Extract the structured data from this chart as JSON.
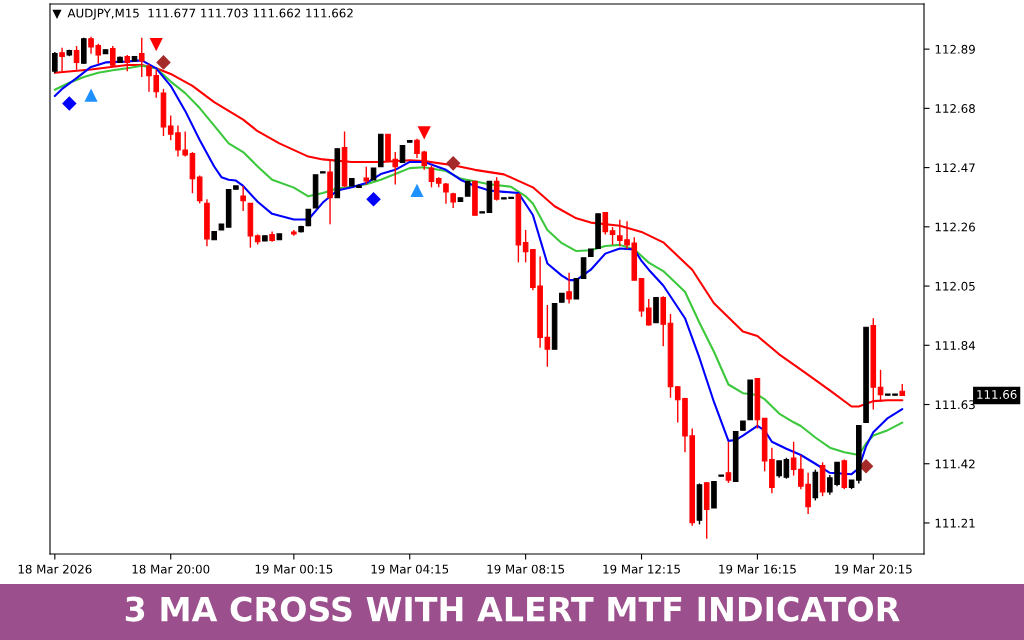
{
  "chart_data": {
    "type": "candlestick",
    "title": "3 MA CROSS WITH ALERT MTF INDICATOR",
    "subtitle": "AUDJPY,M15  111.677 111.703 111.662 111.662",
    "x": [
      "2026-03-18T16:00",
      "2026-03-18T16:15",
      "2026-03-18T16:30",
      "2026-03-18T16:45",
      "2026-03-18T17:00",
      "2026-03-18T17:15",
      "2026-03-18T17:30",
      "2026-03-18T17:45",
      "2026-03-18T18:00",
      "2026-03-18T18:15",
      "2026-03-18T18:30",
      "2026-03-18T18:45",
      "2026-03-18T19:00",
      "2026-03-18T19:15",
      "2026-03-18T19:30",
      "2026-03-18T19:45",
      "2026-03-18T20:00",
      "2026-03-18T20:15",
      "2026-03-18T20:30",
      "2026-03-18T20:45",
      "2026-03-18T21:00",
      "2026-03-18T21:15",
      "2026-03-18T21:30",
      "2026-03-18T21:45",
      "2026-03-18T22:00",
      "2026-03-18T22:15",
      "2026-03-18T22:30",
      "2026-03-18T22:45",
      "2026-03-18T23:00",
      "2026-03-18T23:15",
      "2026-03-18T23:30",
      "2026-03-18T23:45",
      "2026-03-19T00:15",
      "2026-03-19T00:30",
      "2026-03-19T00:45",
      "2026-03-19T01:00",
      "2026-03-19T01:15",
      "2026-03-19T01:30",
      "2026-03-19T01:45",
      "2026-03-19T02:00",
      "2026-03-19T02:15",
      "2026-03-19T02:30",
      "2026-03-19T02:45",
      "2026-03-19T03:00",
      "2026-03-19T03:15",
      "2026-03-19T03:30",
      "2026-03-19T03:45",
      "2026-03-19T04:00",
      "2026-03-19T04:15",
      "2026-03-19T04:30",
      "2026-03-19T04:45",
      "2026-03-19T05:00",
      "2026-03-19T05:15",
      "2026-03-19T05:30",
      "2026-03-19T05:45",
      "2026-03-19T06:00",
      "2026-03-19T06:15",
      "2026-03-19T06:30",
      "2026-03-19T06:45",
      "2026-03-19T07:00",
      "2026-03-19T07:15",
      "2026-03-19T07:30",
      "2026-03-19T07:45",
      "2026-03-19T08:00",
      "2026-03-19T08:15",
      "2026-03-19T08:30",
      "2026-03-19T08:45",
      "2026-03-19T09:00",
      "2026-03-19T09:15",
      "2026-03-19T09:30",
      "2026-03-19T09:45",
      "2026-03-19T10:00",
      "2026-03-19T10:15",
      "2026-03-19T10:30",
      "2026-03-19T10:45",
      "2026-03-19T11:00",
      "2026-03-19T11:15",
      "2026-03-19T11:30",
      "2026-03-19T11:45",
      "2026-03-19T12:00",
      "2026-03-19T12:15",
      "2026-03-19T12:30",
      "2026-03-19T12:45",
      "2026-03-19T13:00",
      "2026-03-19T13:15",
      "2026-03-19T13:30",
      "2026-03-19T13:45",
      "2026-03-19T14:00",
      "2026-03-19T14:15",
      "2026-03-19T14:30",
      "2026-03-19T14:45",
      "2026-03-19T15:00",
      "2026-03-19T15:15",
      "2026-03-19T15:30",
      "2026-03-19T15:45",
      "2026-03-19T16:00",
      "2026-03-19T16:15",
      "2026-03-19T16:30",
      "2026-03-19T16:45",
      "2026-03-19T17:00",
      "2026-03-19T17:15",
      "2026-03-19T17:30",
      "2026-03-19T17:45",
      "2026-03-19T18:00",
      "2026-03-19T18:15",
      "2026-03-19T18:30",
      "2026-03-19T18:45",
      "2026-03-19T19:00",
      "2026-03-19T19:15",
      "2026-03-19T19:30",
      "2026-03-19T19:45",
      "2026-03-19T20:00",
      "2026-03-19T20:15",
      "2026-03-19T20:30",
      "2026-03-19T20:45",
      "2026-03-19T21:00",
      "2026-03-19T21:15"
    ],
    "ohlc": [
      [
        112.812,
        112.88,
        112.805,
        112.874
      ],
      [
        112.877,
        112.895,
        112.812,
        112.864
      ],
      [
        112.869,
        112.888,
        112.865,
        112.885
      ],
      [
        112.885,
        112.901,
        112.817,
        112.843
      ],
      [
        112.84,
        112.93,
        112.838,
        112.927
      ],
      [
        112.927,
        112.934,
        112.874,
        112.898
      ],
      [
        112.903,
        112.909,
        112.838,
        112.869
      ],
      [
        112.874,
        112.888,
        112.874,
        112.888
      ],
      [
        112.892,
        112.901,
        112.828,
        112.833
      ],
      [
        112.843,
        112.864,
        112.843,
        112.861
      ],
      [
        112.864,
        112.869,
        112.812,
        112.843
      ],
      [
        112.848,
        112.866,
        112.846,
        112.864
      ],
      [
        112.874,
        112.93,
        112.791,
        112.848
      ],
      [
        112.828,
        112.838,
        112.739,
        112.796
      ],
      [
        112.796,
        112.817,
        112.718,
        112.739
      ],
      [
        112.734,
        112.749,
        112.582,
        112.614
      ],
      [
        112.617,
        112.655,
        112.567,
        112.588
      ],
      [
        112.593,
        112.619,
        112.509,
        112.533
      ],
      [
        112.532,
        112.598,
        112.509,
        112.515
      ],
      [
        112.52,
        112.525,
        112.379,
        112.431
      ],
      [
        112.436,
        112.442,
        112.343,
        112.353
      ],
      [
        112.343,
        112.358,
        112.191,
        112.217
      ],
      [
        112.214,
        112.243,
        112.214,
        112.243
      ],
      [
        112.249,
        112.27,
        112.249,
        112.27
      ],
      [
        112.259,
        112.392,
        112.259,
        112.392
      ],
      [
        112.393,
        112.405,
        112.393,
        112.405
      ],
      [
        112.369,
        112.405,
        112.316,
        112.353
      ],
      [
        112.343,
        112.343,
        112.186,
        112.228
      ],
      [
        112.228,
        112.233,
        112.197,
        112.207
      ],
      [
        112.21,
        112.228,
        112.21,
        112.228
      ],
      [
        112.233,
        112.243,
        112.207,
        112.212
      ],
      [
        112.214,
        112.235,
        112.214,
        112.235
      ],
      [
        112.241,
        112.249,
        112.228,
        112.235
      ],
      [
        112.243,
        112.264,
        112.24,
        112.261
      ],
      [
        112.264,
        112.322,
        112.262,
        112.322
      ],
      [
        112.327,
        112.444,
        112.327,
        112.444
      ],
      [
        112.451,
        112.455,
        112.451,
        112.455
      ],
      [
        112.454,
        112.499,
        112.269,
        112.363
      ],
      [
        112.363,
        112.537,
        112.363,
        112.537
      ],
      [
        112.541,
        112.598,
        112.4,
        112.405
      ],
      [
        112.405,
        112.431,
        112.405,
        112.431
      ],
      [
        112.4,
        112.41,
        112.398,
        112.405
      ],
      [
        112.433,
        112.473,
        112.41,
        112.423
      ],
      [
        112.426,
        112.468,
        112.426,
        112.468
      ],
      [
        112.473,
        112.588,
        112.473,
        112.588
      ],
      [
        112.588,
        112.588,
        112.494,
        112.494
      ],
      [
        112.499,
        112.525,
        112.41,
        112.473
      ],
      [
        112.488,
        112.548,
        112.488,
        112.548
      ],
      [
        112.56,
        112.566,
        112.56,
        112.566
      ],
      [
        112.567,
        112.572,
        112.504,
        112.52
      ],
      [
        112.525,
        112.53,
        112.462,
        112.478
      ],
      [
        112.468,
        112.478,
        112.4,
        112.421
      ],
      [
        112.431,
        112.436,
        112.4,
        112.415
      ],
      [
        112.412,
        112.415,
        112.342,
        112.384
      ],
      [
        112.377,
        112.381,
        112.327,
        112.348
      ],
      [
        112.35,
        112.363,
        112.35,
        112.363
      ],
      [
        112.369,
        112.421,
        112.369,
        112.421
      ],
      [
        112.421,
        112.421,
        112.301,
        112.301
      ],
      [
        112.309,
        112.313,
        112.309,
        112.313
      ],
      [
        112.311,
        112.421,
        112.311,
        112.421
      ],
      [
        112.421,
        112.436,
        112.353,
        112.358
      ],
      [
        112.359,
        112.363,
        112.359,
        112.363
      ],
      [
        112.361,
        112.365,
        112.361,
        112.365
      ],
      [
        112.374,
        112.379,
        112.134,
        112.196
      ],
      [
        112.204,
        112.249,
        112.134,
        112.172
      ],
      [
        112.179,
        112.181,
        112.035,
        112.045
      ],
      [
        112.05,
        112.155,
        111.831,
        111.868
      ],
      [
        111.868,
        111.983,
        111.764,
        111.826
      ],
      [
        111.826,
        111.988,
        111.826,
        111.988
      ],
      [
        111.993,
        112.024,
        111.993,
        112.024
      ],
      [
        112.03,
        112.097,
        111.988,
        112.004
      ],
      [
        112.004,
        112.077,
        112.004,
        112.077
      ],
      [
        112.077,
        112.15,
        112.077,
        112.15
      ],
      [
        112.155,
        112.181,
        112.155,
        112.181
      ],
      [
        112.183,
        112.306,
        112.183,
        112.306
      ],
      [
        112.311,
        112.311,
        112.233,
        112.243
      ],
      [
        112.246,
        112.259,
        112.196,
        112.233
      ],
      [
        112.228,
        112.285,
        112.191,
        112.212
      ],
      [
        112.214,
        112.28,
        112.181,
        112.196
      ],
      [
        112.202,
        112.223,
        112.071,
        112.071
      ],
      [
        112.077,
        112.077,
        111.941,
        111.962
      ],
      [
        111.972,
        112.004,
        111.91,
        111.912
      ],
      [
        111.92,
        112.009,
        111.92,
        112.009
      ],
      [
        112.009,
        112.014,
        111.837,
        111.915
      ],
      [
        111.918,
        111.951,
        111.654,
        111.693
      ],
      [
        111.693,
        111.696,
        111.566,
        111.647
      ],
      [
        111.651,
        111.654,
        111.461,
        111.519
      ],
      [
        111.519,
        111.545,
        111.2,
        111.211
      ],
      [
        111.22,
        111.35,
        111.205,
        111.345
      ],
      [
        111.352,
        111.355,
        111.154,
        111.258
      ],
      [
        111.263,
        111.357,
        111.263,
        111.357
      ],
      [
        111.376,
        111.38,
        111.376,
        111.38
      ],
      [
        111.388,
        111.498,
        111.352,
        111.362
      ],
      [
        111.357,
        111.534,
        111.357,
        111.534
      ],
      [
        111.539,
        111.571,
        111.539,
        111.571
      ],
      [
        111.576,
        111.717,
        111.576,
        111.717
      ],
      [
        111.722,
        111.722,
        111.545,
        111.576
      ],
      [
        111.581,
        111.581,
        111.393,
        111.43
      ],
      [
        111.435,
        111.477,
        111.315,
        111.336
      ],
      [
        111.378,
        111.43,
        111.37,
        111.43
      ],
      [
        111.372,
        111.441,
        111.367,
        111.435
      ],
      [
        111.44,
        111.498,
        111.378,
        111.4
      ],
      [
        111.4,
        111.451,
        111.33,
        111.34
      ],
      [
        111.347,
        111.388,
        111.242,
        111.268
      ],
      [
        111.3,
        111.399,
        111.29,
        111.39
      ],
      [
        111.414,
        111.425,
        111.305,
        111.32
      ],
      [
        111.32,
        111.38,
        111.31,
        111.37
      ],
      [
        111.347,
        111.425,
        111.34,
        111.425
      ],
      [
        111.43,
        111.435,
        111.33,
        111.336
      ],
      [
        111.336,
        111.362,
        111.33,
        111.362
      ],
      [
        111.362,
        111.555,
        111.35,
        111.555
      ],
      [
        111.566,
        111.904,
        111.566,
        111.904
      ],
      [
        111.91,
        111.936,
        111.612,
        111.691
      ],
      [
        111.691,
        111.753,
        111.639,
        111.665
      ],
      [
        111.663,
        111.667,
        111.663,
        111.667
      ],
      [
        111.663,
        111.667,
        111.663,
        111.667
      ],
      [
        111.677,
        111.703,
        111.662,
        111.662
      ]
    ],
    "colors": [
      "#000000",
      "#ff0000",
      "#000000",
      "#ff0000",
      "#000000",
      "#ff0000",
      "#ff0000",
      "#000000",
      "#ff0000",
      "#000000",
      "#ff0000",
      "#000000",
      "#ff0000",
      "#ff0000",
      "#ff0000",
      "#ff0000",
      "#ff0000",
      "#ff0000",
      "#ff0000",
      "#ff0000",
      "#ff0000",
      "#ff0000",
      "#000000",
      "#000000",
      "#000000",
      "#000000",
      "#ff0000",
      "#ff0000",
      "#ff0000",
      "#000000",
      "#ff0000",
      "#000000",
      "#ff0000",
      "#000000",
      "#000000",
      "#000000",
      "#000000",
      "#ff0000",
      "#000000",
      "#ff0000",
      "#000000",
      "#000000",
      "#ff0000",
      "#000000",
      "#000000",
      "#ff0000",
      "#ff0000",
      "#000000",
      "#000000",
      "#ff0000",
      "#ff0000",
      "#ff0000",
      "#ff0000",
      "#ff0000",
      "#ff0000",
      "#000000",
      "#000000",
      "#ff0000",
      "#000000",
      "#000000",
      "#ff0000",
      "#000000",
      "#000000",
      "#ff0000",
      "#ff0000",
      "#ff0000",
      "#ff0000",
      "#ff0000",
      "#000000",
      "#000000",
      "#ff0000",
      "#000000",
      "#000000",
      "#000000",
      "#000000",
      "#ff0000",
      "#ff0000",
      "#ff0000",
      "#ff0000",
      "#ff0000",
      "#ff0000",
      "#ff0000",
      "#000000",
      "#ff0000",
      "#ff0000",
      "#ff0000",
      "#ff0000",
      "#ff0000",
      "#000000",
      "#ff0000",
      "#000000",
      "#000000",
      "#ff0000",
      "#000000",
      "#000000",
      "#000000",
      "#ff0000",
      "#ff0000",
      "#ff0000",
      "#000000",
      "#000000",
      "#ff0000",
      "#ff0000",
      "#ff0000",
      "#000000",
      "#ff0000",
      "#000000",
      "#000000",
      "#ff0000",
      "#000000",
      "#000000",
      "#000000",
      "#ff0000",
      "#ff0000",
      "#000000",
      "#000000",
      "#ff0000"
    ],
    "series": [
      {
        "type": "line",
        "color": "#ff0000",
        "x": [
          "2026-03-18T16:00",
          "2026-03-18T17:15",
          "2026-03-18T18:30",
          "2026-03-18T19:00",
          "2026-03-18T19:30",
          "2026-03-18T20:00",
          "2026-03-18T20:45",
          "2026-03-18T21:30",
          "2026-03-18T22:00",
          "2026-03-18T22:30",
          "2026-03-18T23:00",
          "2026-03-18T23:45",
          "2026-03-19T00:45",
          "2026-03-19T01:15",
          "2026-03-19T02:15",
          "2026-03-19T03:15",
          "2026-03-19T04:15",
          "2026-03-19T04:45",
          "2026-03-19T05:45",
          "2026-03-19T06:30",
          "2026-03-19T07:30",
          "2026-03-19T08:30",
          "2026-03-19T09:15",
          "2026-03-19T10:00",
          "2026-03-19T10:30",
          "2026-03-19T11:30",
          "2026-03-19T12:15",
          "2026-03-19T13:00",
          "2026-03-19T14:00",
          "2026-03-19T14:45",
          "2026-03-19T15:45",
          "2026-03-19T16:15",
          "2026-03-19T17:00",
          "2026-03-19T17:45",
          "2026-03-19T18:45",
          "2026-03-19T19:30",
          "2026-03-19T19:45",
          "2026-03-19T20:15",
          "2026-03-19T20:45",
          "2026-03-19T21:15"
        ],
        "values": [
          112.806,
          112.818,
          112.834,
          112.834,
          112.822,
          112.802,
          112.76,
          112.702,
          112.671,
          112.64,
          112.599,
          112.556,
          112.509,
          112.499,
          112.49,
          112.49,
          112.496,
          112.493,
          112.478,
          112.462,
          112.446,
          112.4,
          112.333,
          112.29,
          112.275,
          112.264,
          112.242,
          112.205,
          112.108,
          111.989,
          111.889,
          111.873,
          111.808,
          111.754,
          111.68,
          111.623,
          111.623,
          111.642,
          111.645,
          111.645
        ]
      },
      {
        "type": "line",
        "color": "#3cc83c",
        "x": [
          "2026-03-18T16:00",
          "2026-03-18T16:30",
          "2026-03-18T17:00",
          "2026-03-18T17:30",
          "2026-03-18T18:00",
          "2026-03-18T18:30",
          "2026-03-18T19:00",
          "2026-03-18T19:30",
          "2026-03-18T20:00",
          "2026-03-18T20:30",
          "2026-03-18T21:00",
          "2026-03-18T21:30",
          "2026-03-18T22:00",
          "2026-03-18T22:30",
          "2026-03-18T23:00",
          "2026-03-18T23:30",
          "2026-03-19T00:15",
          "2026-03-19T00:45",
          "2026-03-19T01:15",
          "2026-03-19T01:45",
          "2026-03-19T02:15",
          "2026-03-19T02:45",
          "2026-03-19T03:15",
          "2026-03-19T03:45",
          "2026-03-19T04:15",
          "2026-03-19T04:45",
          "2026-03-19T05:30",
          "2026-03-19T06:00",
          "2026-03-19T07:00",
          "2026-03-19T07:45",
          "2026-03-19T08:15",
          "2026-03-19T08:30",
          "2026-03-19T09:00",
          "2026-03-19T09:30",
          "2026-03-19T10:00",
          "2026-03-19T10:30",
          "2026-03-19T11:00",
          "2026-03-19T11:30",
          "2026-03-19T12:00",
          "2026-03-19T12:30",
          "2026-03-19T13:00",
          "2026-03-19T13:45",
          "2026-03-19T14:15",
          "2026-03-19T14:45",
          "2026-03-19T15:15",
          "2026-03-19T15:45",
          "2026-03-19T16:15",
          "2026-03-19T16:30",
          "2026-03-19T17:00",
          "2026-03-19T17:30",
          "2026-03-19T17:45",
          "2026-03-19T18:15",
          "2026-03-19T18:45",
          "2026-03-19T19:15",
          "2026-03-19T19:45",
          "2026-03-19T20:00",
          "2026-03-19T20:15",
          "2026-03-19T20:45",
          "2026-03-19T21:15"
        ],
        "values": [
          112.746,
          112.771,
          112.791,
          112.806,
          112.815,
          112.822,
          112.831,
          112.822,
          112.775,
          112.734,
          112.681,
          112.619,
          112.556,
          112.525,
          112.474,
          112.427,
          112.399,
          112.368,
          112.38,
          112.396,
          112.402,
          112.411,
          112.427,
          112.447,
          112.468,
          112.471,
          112.458,
          112.431,
          112.411,
          112.402,
          112.368,
          112.343,
          112.249,
          112.202,
          112.174,
          112.177,
          112.192,
          112.196,
          112.18,
          112.133,
          112.103,
          112.03,
          111.92,
          111.817,
          111.701,
          111.67,
          111.664,
          111.649,
          111.598,
          111.567,
          111.554,
          111.513,
          111.477,
          111.461,
          111.451,
          111.492,
          111.52,
          111.539,
          111.566
        ]
      },
      {
        "type": "line",
        "color": "#0000ff",
        "x": [
          "2026-03-18T16:00",
          "2026-03-18T16:15",
          "2026-03-18T16:45",
          "2026-03-18T17:15",
          "2026-03-18T17:45",
          "2026-03-18T18:30",
          "2026-03-18T19:00",
          "2026-03-18T19:30",
          "2026-03-18T20:00",
          "2026-03-18T20:30",
          "2026-03-18T21:00",
          "2026-03-18T21:30",
          "2026-03-18T21:45",
          "2026-03-18T22:00",
          "2026-03-18T22:15",
          "2026-03-18T22:30",
          "2026-03-18T23:00",
          "2026-03-18T23:30",
          "2026-03-19T00:15",
          "2026-03-19T00:45",
          "2026-03-19T01:15",
          "2026-03-19T01:45",
          "2026-03-19T02:15",
          "2026-03-19T02:45",
          "2026-03-19T03:15",
          "2026-03-19T03:45",
          "2026-03-19T04:15",
          "2026-03-19T04:45",
          "2026-03-19T05:30",
          "2026-03-19T06:00",
          "2026-03-19T06:30",
          "2026-03-19T07:00",
          "2026-03-19T07:30",
          "2026-03-19T08:00",
          "2026-03-19T08:30",
          "2026-03-19T09:00",
          "2026-03-19T09:30",
          "2026-03-19T09:45",
          "2026-03-19T10:00",
          "2026-03-19T10:30",
          "2026-03-19T11:00",
          "2026-03-19T11:30",
          "2026-03-19T12:00",
          "2026-03-19T12:15",
          "2026-03-19T12:30",
          "2026-03-19T13:00",
          "2026-03-19T13:45",
          "2026-03-19T14:15",
          "2026-03-19T14:45",
          "2026-03-19T15:15",
          "2026-03-19T15:30",
          "2026-03-19T15:45",
          "2026-03-19T16:15",
          "2026-03-19T16:30",
          "2026-03-19T16:45",
          "2026-03-19T17:15",
          "2026-03-19T17:45",
          "2026-03-19T18:15",
          "2026-03-19T18:45",
          "2026-03-19T19:30",
          "2026-03-19T19:45",
          "2026-03-19T20:00",
          "2026-03-19T20:15",
          "2026-03-19T20:45",
          "2026-03-19T21:15"
        ],
        "values": [
          112.724,
          112.749,
          112.787,
          112.827,
          112.843,
          112.846,
          112.85,
          112.822,
          112.76,
          112.671,
          112.568,
          112.474,
          112.436,
          112.427,
          112.424,
          112.405,
          112.349,
          112.306,
          112.286,
          112.286,
          112.346,
          112.389,
          112.4,
          112.415,
          112.447,
          112.462,
          112.49,
          112.49,
          112.462,
          112.427,
          112.405,
          112.389,
          112.384,
          112.38,
          112.302,
          112.13,
          112.087,
          112.071,
          112.071,
          112.108,
          112.165,
          112.183,
          112.18,
          112.139,
          112.108,
          112.052,
          111.936,
          111.795,
          111.639,
          111.501,
          111.504,
          111.52,
          111.554,
          111.538,
          111.498,
          111.473,
          111.451,
          111.42,
          111.388,
          111.383,
          111.404,
          111.482,
          111.532,
          111.582,
          111.614
        ]
      },
      {
        "type": "scatter",
        "color": "#0000ff",
        "marker": "diamond",
        "x": [
          "2026-03-18T16:30",
          "2026-03-19T03:00"
        ],
        "values": [
          112.697,
          112.358
        ]
      },
      {
        "type": "scatter",
        "color": "#1e90ff",
        "marker": "triangle",
        "x": [
          "2026-03-18T17:15",
          "2026-03-19T04:30"
        ],
        "values": [
          112.727,
          112.389
        ]
      },
      {
        "type": "scatter",
        "color": "#ff0000",
        "marker": "triangle",
        "x": [
          "2026-03-18T19:30",
          "2026-03-19T04:45"
        ],
        "values": [
          112.906,
          112.593
        ]
      },
      {
        "type": "scatter",
        "color": "#a52a2a",
        "marker": "diamond",
        "x": [
          "2026-03-18T19:45",
          "2026-03-19T05:45",
          "2026-03-19T20:00"
        ],
        "values": [
          112.843,
          112.485,
          111.411
        ]
      }
    ],
    "xlim": [
      "2026-03-18T15:50",
      "2026-03-19T22:00"
    ],
    "xticks": [
      {
        "value": "2026-03-18T16:00",
        "label": "18 Mar 2026"
      },
      {
        "value": "2026-03-18T20:00",
        "label": "18 Mar 20:00"
      },
      {
        "value": "2026-03-19T00:15",
        "label": "19 Mar 00:15"
      },
      {
        "value": "2026-03-19T04:15",
        "label": "19 Mar 04:15"
      },
      {
        "value": "2026-03-19T08:15",
        "label": "19 Mar 08:15"
      },
      {
        "value": "2026-03-19T12:15",
        "label": "19 Mar 12:15"
      },
      {
        "value": "2026-03-19T16:15",
        "label": "19 Mar 16:15"
      },
      {
        "value": "2026-03-19T20:15",
        "label": "19 Mar 20:15"
      }
    ],
    "ylim": [
      111.1,
      113.05
    ],
    "yticks": [
      112.89,
      112.68,
      112.47,
      112.26,
      112.05,
      111.84,
      111.63,
      111.42,
      111.21
    ],
    "annotations": [
      "111.66"
    ]
  }
}
